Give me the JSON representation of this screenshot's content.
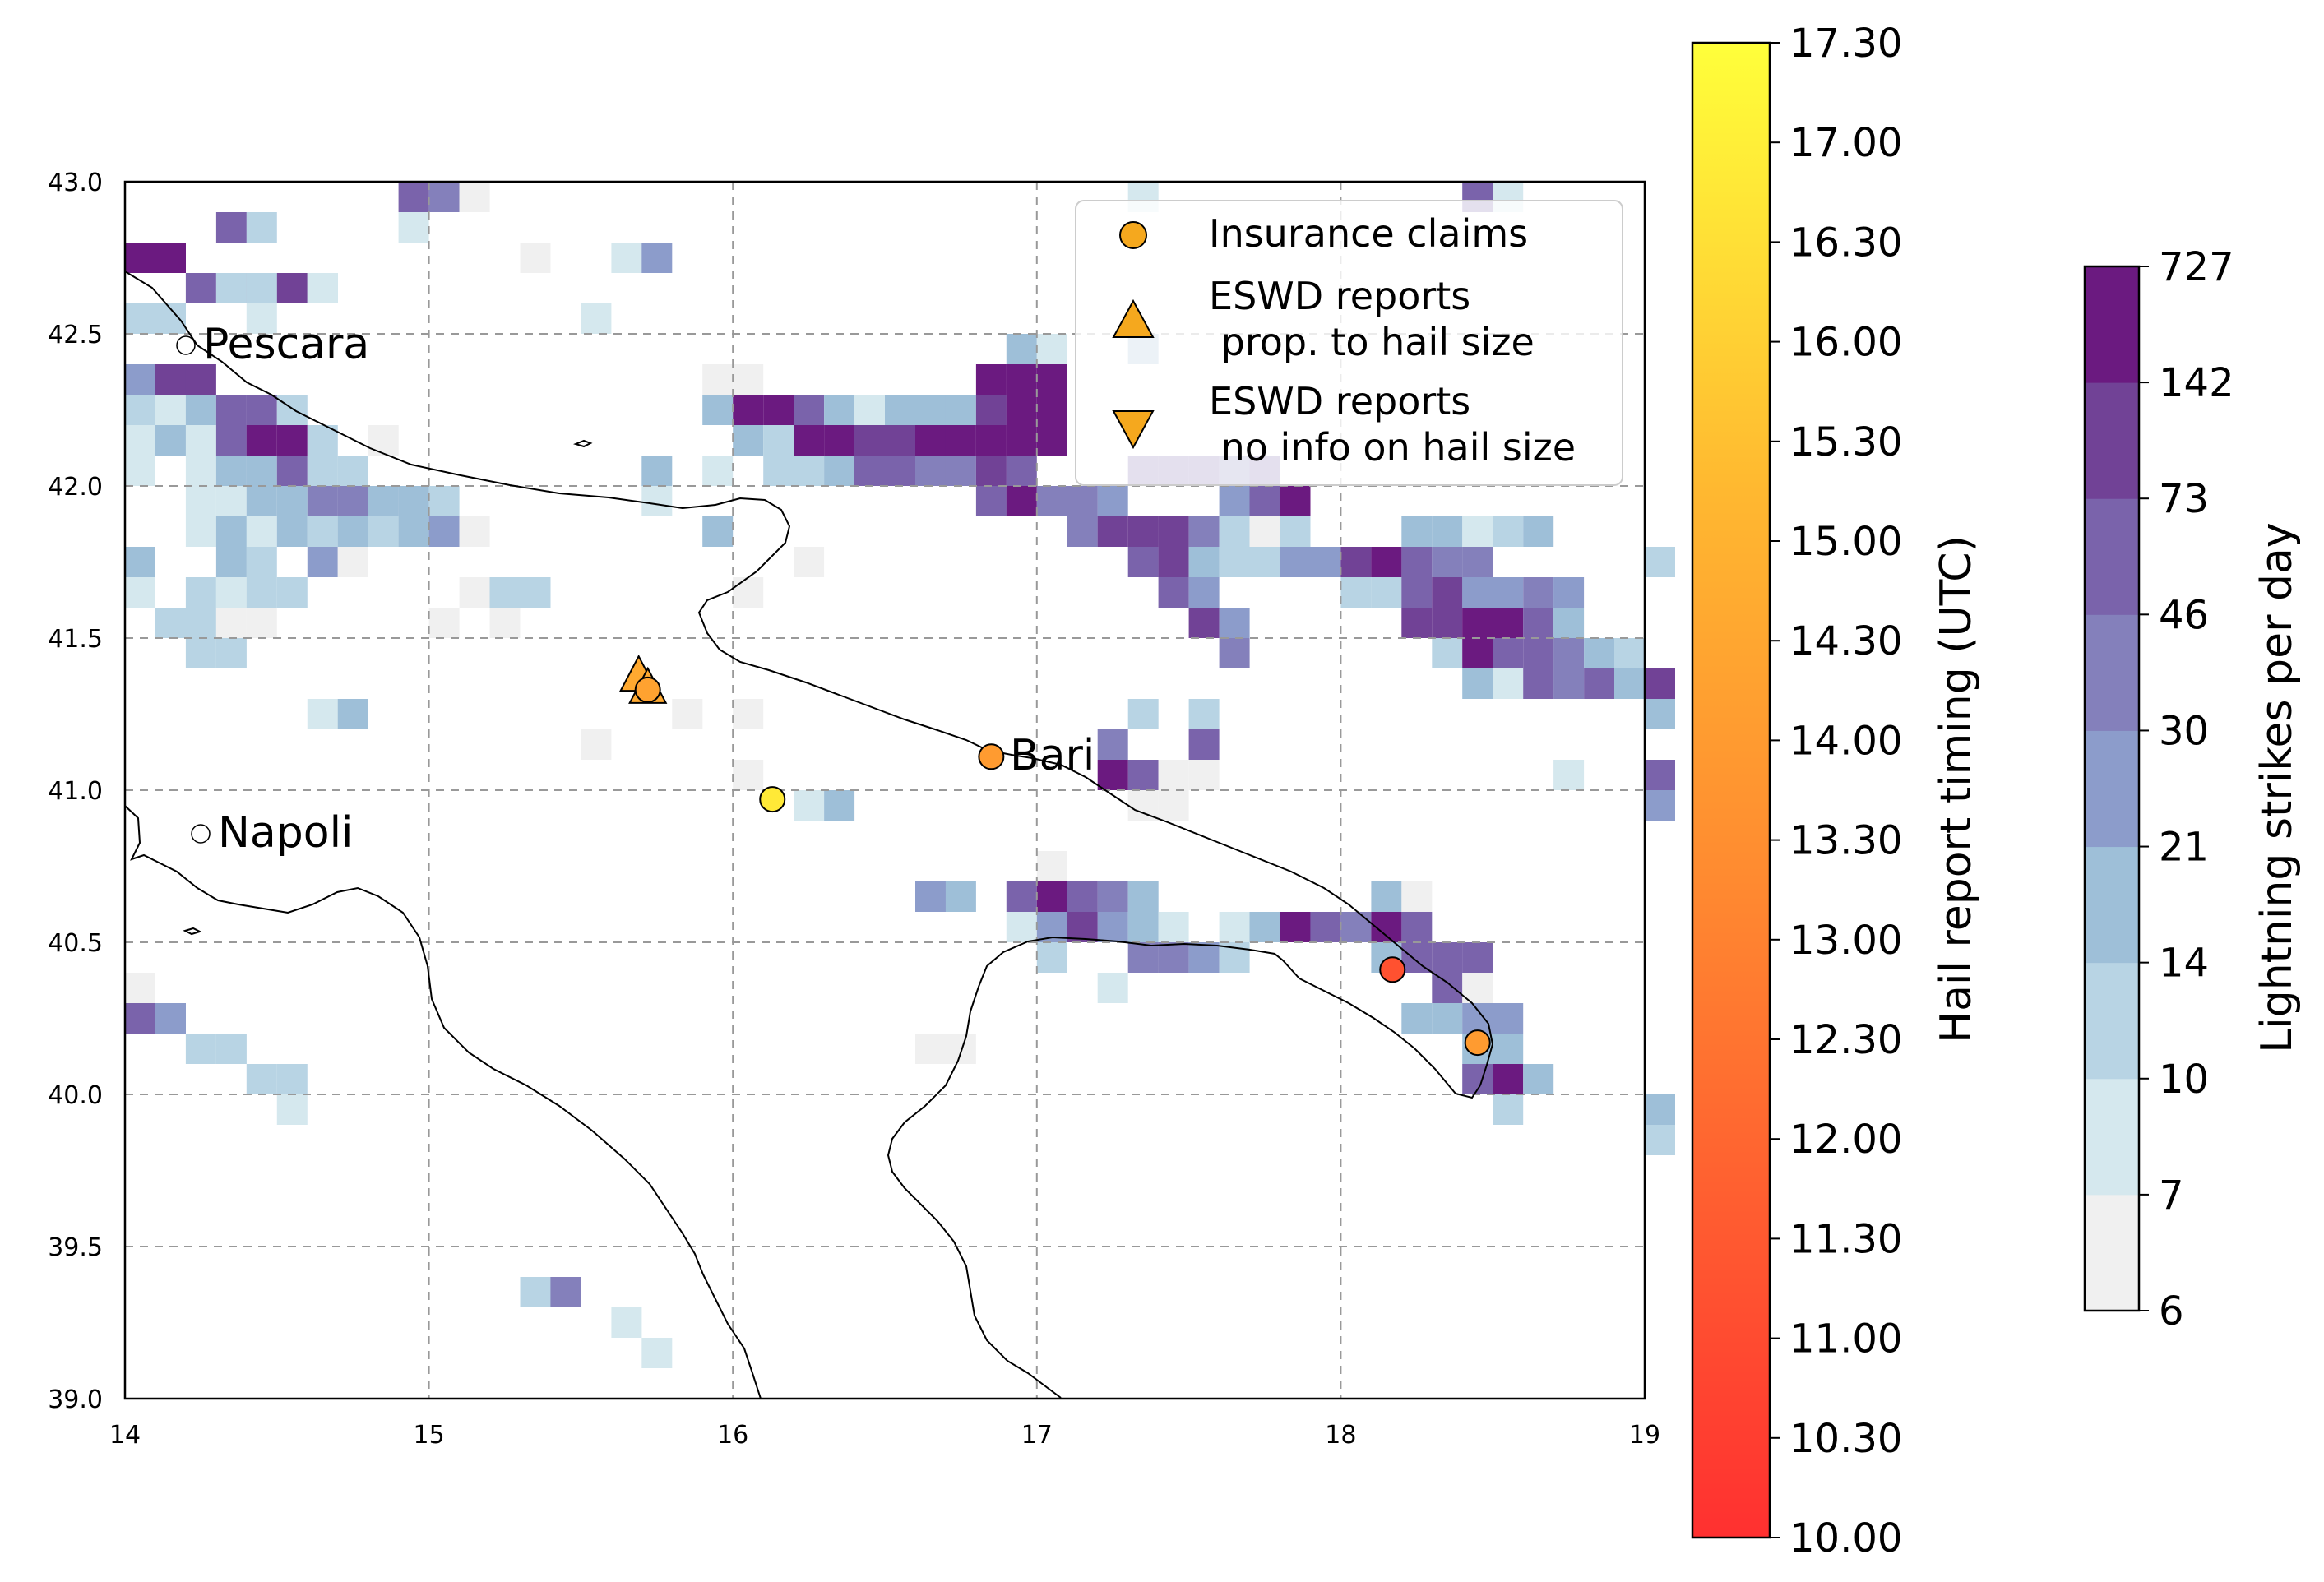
{
  "chart_data": {
    "type": "heatmap",
    "map": {
      "lon_ticks": [
        "14",
        "15",
        "16",
        "17",
        "18",
        "19"
      ],
      "lat_ticks": [
        "43.0",
        "42.5",
        "42.0",
        "41.5",
        "41.0",
        "40.5",
        "40.0",
        "39.5",
        "39.0"
      ],
      "xlim": [
        14,
        19
      ],
      "ylim": [
        39,
        43
      ],
      "grid": true,
      "cell_size_deg": 0.1,
      "cities": [
        {
          "name": "Pescara",
          "lon": 14.2,
          "lat": 42.46
        },
        {
          "name": "Napoli",
          "lon": 14.25,
          "lat": 40.85
        },
        {
          "name": "Bari",
          "lon": 16.85,
          "lat": 41.11
        }
      ]
    },
    "legend": {
      "placement": "top-right",
      "entries": [
        "Insurance claims",
        "ESWD reports\n prop. to hail size",
        "ESWD reports\n no info on hail size"
      ]
    },
    "hail_colorbar": {
      "label": "Hail report timing (UTC)",
      "ticks": [
        "10.00",
        "10.30",
        "11.00",
        "11.30",
        "12.00",
        "12.30",
        "13.00",
        "13.30",
        "14.00",
        "14.30",
        "15.00",
        "15.30",
        "16.00",
        "16.30",
        "17.00",
        "17.30"
      ],
      "color_low": "#ff3030",
      "color_high": "#ffff3a"
    },
    "lightning_colorbar": {
      "label": "Lightning strikes per day",
      "ticks": [
        "6",
        "7",
        "10",
        "14",
        "21",
        "30",
        "46",
        "73",
        "142",
        "727"
      ],
      "colors": [
        "#f0f0f0",
        "#d5e8ee",
        "#b8d4e4",
        "#9ebfd8",
        "#8c9ccb",
        "#8480bb",
        "#7a63ab",
        "#714296",
        "#6b1a80"
      ]
    },
    "insurance_claims": [
      {
        "lon": 16.85,
        "lat": 41.11,
        "time": 14.0
      },
      {
        "lon": 16.13,
        "lat": 40.97,
        "time": 16.8
      },
      {
        "lon": 18.17,
        "lat": 40.41,
        "time": 11.2
      },
      {
        "lon": 18.45,
        "lat": 40.17,
        "time": 14.0
      },
      {
        "lon": 15.72,
        "lat": 41.33,
        "time": 14.3
      }
    ],
    "eswd_reports_size": [
      {
        "lon": 15.69,
        "lat": 41.37,
        "time": 14.6
      },
      {
        "lon": 15.72,
        "lat": 41.33,
        "time": 14.6
      }
    ],
    "lightning_cells": [
      [
        14.0,
        42.7,
        8
      ],
      [
        14.1,
        42.7,
        8
      ],
      [
        14.2,
        42.6,
        6
      ],
      [
        14.4,
        42.6,
        8
      ],
      [
        14.5,
        42.6,
        7
      ],
      [
        14.3,
        42.8,
        6
      ],
      [
        14.4,
        42.8,
        2
      ],
      [
        14.3,
        42.6,
        2
      ],
      [
        14.4,
        42.6,
        2
      ],
      [
        14.6,
        42.6,
        2
      ],
      [
        14.1,
        42.5,
        2
      ],
      [
        14.0,
        42.5,
        2
      ],
      [
        14.4,
        42.5,
        1
      ],
      [
        14.6,
        42.6,
        1
      ],
      [
        14.0,
        42.3,
        4
      ],
      [
        14.1,
        42.3,
        7
      ],
      [
        14.2,
        42.3,
        7
      ],
      [
        14.0,
        42.2,
        2
      ],
      [
        14.1,
        42.2,
        1
      ],
      [
        14.2,
        42.2,
        3
      ],
      [
        14.3,
        42.2,
        6
      ],
      [
        14.4,
        42.2,
        6
      ],
      [
        14.5,
        42.2,
        2
      ],
      [
        14.0,
        42.1,
        1
      ],
      [
        14.1,
        42.1,
        3
      ],
      [
        14.2,
        42.1,
        1
      ],
      [
        14.3,
        42.1,
        6
      ],
      [
        14.4,
        42.1,
        8
      ],
      [
        14.5,
        42.1,
        8
      ],
      [
        14.6,
        42.1,
        2
      ],
      [
        14.0,
        42.0,
        1
      ],
      [
        14.2,
        42.0,
        1
      ],
      [
        14.3,
        42.0,
        3
      ],
      [
        14.4,
        42.0,
        3
      ],
      [
        14.5,
        42.0,
        6
      ],
      [
        14.6,
        42.0,
        2
      ],
      [
        14.7,
        42.0,
        2
      ],
      [
        14.2,
        41.9,
        1
      ],
      [
        14.3,
        41.9,
        1
      ],
      [
        14.4,
        41.9,
        3
      ],
      [
        14.5,
        41.9,
        3
      ],
      [
        14.6,
        41.9,
        5
      ],
      [
        14.7,
        41.9,
        5
      ],
      [
        14.8,
        41.9,
        3
      ],
      [
        14.9,
        41.9,
        3
      ],
      [
        15.0,
        41.9,
        2
      ],
      [
        14.2,
        41.8,
        1
      ],
      [
        14.3,
        41.8,
        3
      ],
      [
        14.4,
        41.8,
        1
      ],
      [
        14.5,
        41.8,
        3
      ],
      [
        14.6,
        41.8,
        2
      ],
      [
        14.7,
        41.8,
        3
      ],
      [
        14.8,
        41.8,
        2
      ],
      [
        14.9,
        41.8,
        3
      ],
      [
        15.0,
        41.8,
        4
      ],
      [
        15.1,
        41.8,
        0
      ],
      [
        14.0,
        41.7,
        3
      ],
      [
        14.3,
        41.7,
        3
      ],
      [
        14.4,
        41.7,
        2
      ],
      [
        14.6,
        41.7,
        4
      ],
      [
        14.7,
        41.7,
        0
      ],
      [
        14.2,
        41.6,
        2
      ],
      [
        14.3,
        41.6,
        1
      ],
      [
        14.4,
        41.6,
        2
      ],
      [
        14.5,
        41.6,
        2
      ],
      [
        14.0,
        41.6,
        1
      ],
      [
        14.1,
        41.5,
        2
      ],
      [
        14.2,
        41.5,
        2
      ],
      [
        14.3,
        41.5,
        0
      ],
      [
        14.4,
        41.5,
        0
      ],
      [
        14.2,
        41.4,
        2
      ],
      [
        14.3,
        41.4,
        2
      ],
      [
        14.6,
        41.2,
        1
      ],
      [
        14.7,
        41.2,
        3
      ],
      [
        15.0,
        41.5,
        0
      ],
      [
        15.1,
        41.6,
        0
      ],
      [
        15.2,
        41.6,
        2
      ],
      [
        15.3,
        41.6,
        2
      ],
      [
        15.2,
        41.5,
        0
      ],
      [
        14.9,
        42.9,
        6
      ],
      [
        15.0,
        42.9,
        5
      ],
      [
        15.1,
        42.9,
        0
      ],
      [
        14.9,
        42.8,
        1
      ],
      [
        15.3,
        42.7,
        0
      ],
      [
        15.6,
        42.7,
        1
      ],
      [
        15.7,
        42.7,
        4
      ],
      [
        15.5,
        42.5,
        1
      ],
      [
        14.8,
        42.1,
        0
      ],
      [
        15.7,
        42.0,
        3
      ],
      [
        15.7,
        41.9,
        1
      ],
      [
        15.9,
        42.3,
        0
      ],
      [
        16.0,
        42.3,
        0
      ],
      [
        15.9,
        42.2,
        3
      ],
      [
        16.0,
        42.2,
        8
      ],
      [
        16.1,
        42.2,
        8
      ],
      [
        16.2,
        42.2,
        6
      ],
      [
        16.3,
        42.2,
        3
      ],
      [
        16.4,
        42.2,
        1
      ],
      [
        16.5,
        42.2,
        3
      ],
      [
        16.6,
        42.2,
        3
      ],
      [
        16.7,
        42.2,
        3
      ],
      [
        16.8,
        42.2,
        7
      ],
      [
        16.9,
        42.2,
        8
      ],
      [
        17.0,
        42.2,
        8
      ],
      [
        16.8,
        42.3,
        8
      ],
      [
        16.9,
        42.3,
        8
      ],
      [
        17.0,
        42.3,
        8
      ],
      [
        16.9,
        42.4,
        3
      ],
      [
        17.0,
        42.4,
        1
      ],
      [
        16.0,
        42.1,
        3
      ],
      [
        16.1,
        42.1,
        2
      ],
      [
        16.2,
        42.1,
        8
      ],
      [
        16.3,
        42.1,
        8
      ],
      [
        16.4,
        42.1,
        7
      ],
      [
        16.5,
        42.1,
        7
      ],
      [
        16.6,
        42.1,
        8
      ],
      [
        16.7,
        42.1,
        8
      ],
      [
        16.8,
        42.1,
        8
      ],
      [
        16.9,
        42.1,
        8
      ],
      [
        17.0,
        42.1,
        8
      ],
      [
        15.9,
        42.0,
        1
      ],
      [
        16.1,
        42.0,
        2
      ],
      [
        16.2,
        42.0,
        2
      ],
      [
        16.3,
        42.0,
        3
      ],
      [
        16.4,
        42.0,
        6
      ],
      [
        16.5,
        42.0,
        6
      ],
      [
        16.6,
        42.0,
        5
      ],
      [
        16.7,
        42.0,
        5
      ],
      [
        16.8,
        42.0,
        7
      ],
      [
        16.9,
        42.0,
        6
      ],
      [
        15.9,
        41.8,
        3
      ],
      [
        16.2,
        41.7,
        0
      ],
      [
        16.0,
        41.6,
        0
      ],
      [
        16.8,
        41.9,
        6
      ],
      [
        16.9,
        41.9,
        8
      ],
      [
        17.0,
        41.9,
        5
      ],
      [
        17.1,
        41.9,
        5
      ],
      [
        17.2,
        41.9,
        4
      ],
      [
        17.3,
        42.0,
        6
      ],
      [
        17.4,
        42.0,
        6
      ],
      [
        17.5,
        42.0,
        6
      ],
      [
        17.1,
        41.8,
        5
      ],
      [
        17.2,
        41.8,
        7
      ],
      [
        17.3,
        41.8,
        7
      ],
      [
        17.4,
        41.8,
        7
      ],
      [
        17.5,
        41.8,
        5
      ],
      [
        17.6,
        41.8,
        2
      ],
      [
        17.7,
        41.8,
        0
      ],
      [
        17.8,
        41.8,
        2
      ],
      [
        17.6,
        41.9,
        4
      ],
      [
        17.7,
        41.9,
        6
      ],
      [
        17.8,
        41.9,
        8
      ],
      [
        17.6,
        42.0,
        5
      ],
      [
        17.7,
        42.0,
        6
      ],
      [
        17.3,
        41.7,
        6
      ],
      [
        17.4,
        41.7,
        7
      ],
      [
        17.5,
        41.7,
        3
      ],
      [
        17.6,
        41.7,
        2
      ],
      [
        17.7,
        41.7,
        2
      ],
      [
        17.8,
        41.7,
        4
      ],
      [
        17.9,
        41.7,
        4
      ],
      [
        18.0,
        41.7,
        7
      ],
      [
        18.1,
        41.7,
        8
      ],
      [
        18.2,
        41.7,
        6
      ],
      [
        18.3,
        41.7,
        5
      ],
      [
        18.4,
        41.7,
        5
      ],
      [
        17.4,
        41.6,
        6
      ],
      [
        17.5,
        41.6,
        4
      ],
      [
        18.0,
        41.6,
        2
      ],
      [
        18.1,
        41.6,
        2
      ],
      [
        18.2,
        41.6,
        6
      ],
      [
        18.3,
        41.6,
        7
      ],
      [
        18.4,
        41.6,
        5
      ],
      [
        18.5,
        41.6,
        4
      ],
      [
        18.6,
        41.6,
        5
      ],
      [
        18.7,
        41.6,
        4
      ],
      [
        17.5,
        41.5,
        7
      ],
      [
        17.6,
        41.5,
        4
      ],
      [
        18.2,
        41.5,
        7
      ],
      [
        18.3,
        41.5,
        7
      ],
      [
        18.4,
        41.5,
        8
      ],
      [
        18.5,
        41.5,
        8
      ],
      [
        18.6,
        41.5,
        6
      ],
      [
        18.7,
        41.5,
        3
      ],
      [
        17.6,
        41.4,
        5
      ],
      [
        18.3,
        41.4,
        2
      ],
      [
        18.4,
        41.4,
        8
      ],
      [
        18.5,
        41.4,
        6
      ],
      [
        18.6,
        41.4,
        6
      ],
      [
        18.7,
        41.4,
        5
      ],
      [
        18.8,
        41.4,
        3
      ],
      [
        18.9,
        41.4,
        2
      ],
      [
        18.4,
        41.3,
        3
      ],
      [
        18.5,
        41.3,
        1
      ],
      [
        18.6,
        41.3,
        6
      ],
      [
        18.7,
        41.3,
        5
      ],
      [
        18.8,
        41.3,
        6
      ],
      [
        18.9,
        41.3,
        3
      ],
      [
        19.0,
        41.3,
        7
      ],
      [
        18.2,
        41.8,
        3
      ],
      [
        18.3,
        41.8,
        3
      ],
      [
        18.4,
        41.8,
        1
      ],
      [
        18.5,
        41.8,
        2
      ],
      [
        18.6,
        41.8,
        3
      ],
      [
        18.4,
        41.6,
        4
      ],
      [
        19.0,
        41.2,
        3
      ],
      [
        19.0,
        41.7,
        2
      ],
      [
        17.3,
        42.4,
        3
      ],
      [
        17.3,
        42.9,
        1
      ],
      [
        18.4,
        42.9,
        6
      ],
      [
        18.5,
        42.9,
        1
      ],
      [
        17.3,
        41.2,
        2
      ],
      [
        17.5,
        41.2,
        2
      ],
      [
        17.5,
        41.1,
        6
      ],
      [
        17.2,
        41.1,
        5
      ],
      [
        17.3,
        41.0,
        6
      ],
      [
        17.2,
        41.0,
        8
      ],
      [
        17.4,
        41.0,
        0
      ],
      [
        17.5,
        41.0,
        0
      ],
      [
        17.3,
        40.9,
        0
      ],
      [
        17.4,
        40.9,
        0
      ],
      [
        15.8,
        41.2,
        0
      ],
      [
        16.0,
        41.2,
        0
      ],
      [
        15.5,
        41.1,
        0
      ],
      [
        16.0,
        41.0,
        0
      ],
      [
        16.2,
        40.9,
        1
      ],
      [
        16.3,
        40.9,
        3
      ],
      [
        18.7,
        41.0,
        1
      ],
      [
        19.0,
        41.0,
        6
      ],
      [
        19.0,
        40.9,
        4
      ],
      [
        16.6,
        40.6,
        4
      ],
      [
        16.7,
        40.6,
        3
      ],
      [
        17.0,
        40.7,
        0
      ],
      [
        16.9,
        40.6,
        6
      ],
      [
        17.0,
        40.6,
        8
      ],
      [
        17.1,
        40.6,
        6
      ],
      [
        17.2,
        40.6,
        5
      ],
      [
        17.3,
        40.6,
        3
      ],
      [
        16.9,
        40.5,
        1
      ],
      [
        17.0,
        40.5,
        4
      ],
      [
        17.1,
        40.5,
        7
      ],
      [
        17.2,
        40.5,
        4
      ],
      [
        17.3,
        40.5,
        3
      ],
      [
        17.4,
        40.5,
        1
      ],
      [
        17.6,
        40.5,
        1
      ],
      [
        17.7,
        40.5,
        3
      ],
      [
        17.8,
        40.5,
        8
      ],
      [
        17.9,
        40.5,
        6
      ],
      [
        18.0,
        40.5,
        5
      ],
      [
        18.1,
        40.5,
        8
      ],
      [
        18.2,
        40.5,
        6
      ],
      [
        17.0,
        40.4,
        2
      ],
      [
        17.3,
        40.4,
        5
      ],
      [
        17.4,
        40.4,
        5
      ],
      [
        17.5,
        40.4,
        4
      ],
      [
        17.6,
        40.4,
        2
      ],
      [
        18.1,
        40.4,
        3
      ],
      [
        18.2,
        40.4,
        6
      ],
      [
        18.3,
        40.4,
        6
      ],
      [
        18.4,
        40.4,
        6
      ],
      [
        18.1,
        40.6,
        3
      ],
      [
        18.2,
        40.6,
        0
      ],
      [
        17.2,
        40.3,
        1
      ],
      [
        18.3,
        40.3,
        6
      ],
      [
        18.4,
        40.3,
        0
      ],
      [
        18.2,
        40.2,
        3
      ],
      [
        18.3,
        40.2,
        3
      ],
      [
        18.4,
        40.2,
        4
      ],
      [
        18.5,
        40.2,
        4
      ],
      [
        18.4,
        40.1,
        3
      ],
      [
        18.5,
        40.1,
        3
      ],
      [
        18.4,
        40.0,
        6
      ],
      [
        18.5,
        40.0,
        8
      ],
      [
        18.6,
        40.0,
        3
      ],
      [
        18.5,
        39.9,
        2
      ],
      [
        19.0,
        39.9,
        3
      ],
      [
        19.0,
        39.8,
        2
      ],
      [
        16.6,
        40.1,
        0
      ],
      [
        16.7,
        40.1,
        0
      ],
      [
        14.0,
        40.3,
        0
      ],
      [
        14.0,
        40.2,
        6
      ],
      [
        14.1,
        40.2,
        4
      ],
      [
        14.2,
        40.1,
        2
      ],
      [
        14.3,
        40.1,
        2
      ],
      [
        14.4,
        40.0,
        2
      ],
      [
        14.5,
        40.0,
        2
      ],
      [
        14.5,
        39.9,
        1
      ],
      [
        15.3,
        39.3,
        2
      ],
      [
        15.4,
        39.3,
        5
      ],
      [
        15.6,
        39.2,
        1
      ],
      [
        15.7,
        39.1,
        1
      ]
    ]
  }
}
